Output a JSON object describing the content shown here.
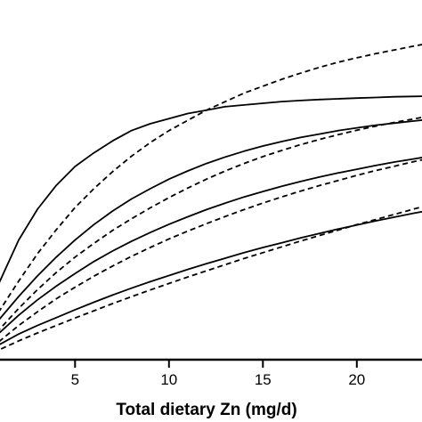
{
  "chart_data": {
    "type": "line",
    "title": "",
    "xlabel": "Total dietary Zn (mg/d)",
    "ylabel": "",
    "xlim": [
      0.2,
      25
    ],
    "ylim": [
      0,
      1
    ],
    "x_ticks": [
      5,
      10,
      15,
      20
    ],
    "grid": false,
    "legend": "none",
    "line_color": "#000000",
    "x": [
      0.2,
      1,
      2,
      3,
      4,
      5,
      6,
      7,
      8,
      9,
      10,
      11,
      12,
      13,
      14,
      15,
      16,
      17,
      18,
      19,
      20,
      21,
      22,
      23,
      24,
      25
    ],
    "series": [
      {
        "style": "solid",
        "values": [
          0.12,
          0.23,
          0.35,
          0.44,
          0.51,
          0.565,
          0.605,
          0.64,
          0.67,
          0.69,
          0.705,
          0.72,
          0.73,
          0.74,
          0.745,
          0.75,
          0.755,
          0.758,
          0.761,
          0.763,
          0.765,
          0.767,
          0.769,
          0.77,
          0.771,
          0.772
        ]
      },
      {
        "style": "dashed",
        "values": [
          0.07,
          0.145,
          0.23,
          0.31,
          0.38,
          0.445,
          0.5,
          0.55,
          0.595,
          0.635,
          0.67,
          0.7,
          0.73,
          0.755,
          0.78,
          0.8,
          0.82,
          0.838,
          0.855,
          0.87,
          0.883,
          0.895,
          0.906,
          0.917,
          0.927,
          0.937
        ]
      },
      {
        "style": "solid",
        "values": [
          0.07,
          0.12,
          0.185,
          0.245,
          0.3,
          0.35,
          0.395,
          0.435,
          0.47,
          0.5,
          0.528,
          0.552,
          0.574,
          0.593,
          0.61,
          0.625,
          0.638,
          0.65,
          0.66,
          0.67,
          0.678,
          0.686,
          0.692,
          0.698,
          0.704,
          0.709
        ]
      },
      {
        "style": "dashed",
        "values": [
          0.04,
          0.09,
          0.15,
          0.205,
          0.255,
          0.3,
          0.34,
          0.378,
          0.412,
          0.444,
          0.474,
          0.502,
          0.528,
          0.552,
          0.574,
          0.594,
          0.612,
          0.629,
          0.644,
          0.658,
          0.671,
          0.683,
          0.694,
          0.704,
          0.714,
          0.723
        ]
      },
      {
        "style": "solid",
        "values": [
          0.04,
          0.08,
          0.13,
          0.175,
          0.215,
          0.252,
          0.287,
          0.318,
          0.346,
          0.372,
          0.396,
          0.418,
          0.439,
          0.458,
          0.476,
          0.492,
          0.507,
          0.521,
          0.534,
          0.546,
          0.557,
          0.568,
          0.578,
          0.587,
          0.596,
          0.604
        ]
      },
      {
        "style": "dashed",
        "values": [
          0.02,
          0.055,
          0.1,
          0.14,
          0.178,
          0.212,
          0.244,
          0.274,
          0.302,
          0.328,
          0.353,
          0.376,
          0.398,
          0.419,
          0.439,
          0.458,
          0.476,
          0.493,
          0.509,
          0.524,
          0.539,
          0.553,
          0.566,
          0.579,
          0.591,
          0.603
        ]
      },
      {
        "style": "solid",
        "values": [
          0.02,
          0.045,
          0.075,
          0.1,
          0.123,
          0.146,
          0.168,
          0.189,
          0.209,
          0.228,
          0.246,
          0.264,
          0.281,
          0.297,
          0.313,
          0.328,
          0.342,
          0.356,
          0.369,
          0.382,
          0.394,
          0.406,
          0.417,
          0.428,
          0.438,
          0.448
        ]
      },
      {
        "style": "dashed",
        "values": [
          0.01,
          0.03,
          0.055,
          0.078,
          0.1,
          0.122,
          0.143,
          0.164,
          0.184,
          0.204,
          0.223,
          0.242,
          0.26,
          0.278,
          0.296,
          0.313,
          0.33,
          0.347,
          0.363,
          0.379,
          0.395,
          0.41,
          0.425,
          0.44,
          0.455,
          0.469
        ]
      }
    ]
  }
}
